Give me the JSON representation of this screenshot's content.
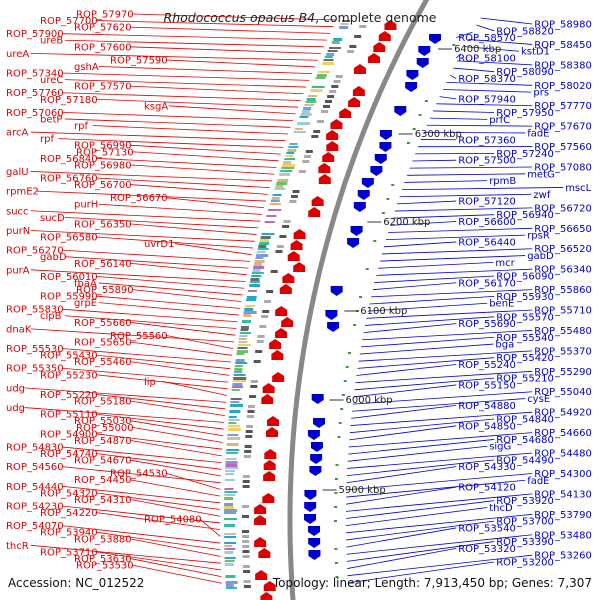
{
  "title": {
    "organism": "Rhodococcus opacus B4",
    "suffix": ", complete genome"
  },
  "footer": {
    "accession": "Accession: NC_012522",
    "summary": "Topology: linear; Length: 7,913,450 bp; Genes: 7,307"
  },
  "colors": {
    "forward": "#dd0000",
    "reverse": "#0000cc",
    "backbone": "#888888"
  },
  "ticks": [
    "6400 kbp",
    "6300 kbp",
    "6200 kbp",
    "6100 kbp",
    "6000 kbp",
    "5900 kbp"
  ],
  "left_labels": [
    "ROP_57970",
    "ROP_57700",
    "ROP_57620",
    "ROP_57900",
    "ureB",
    "ROP_57600",
    "ureA",
    "ROP_57590",
    "gshA",
    "ROP_57340",
    "ureC",
    "ROP_57570",
    "ROP_57760",
    "ROP_57180",
    "ksgA",
    "ROP_57060",
    "betP",
    "rpf",
    "arcA",
    "rpf",
    "ROP_56990",
    "ROP_57130",
    "ROP_56840",
    "ROP_56980",
    "galU",
    "ROP_56760",
    "ROP_56700",
    "rpmE2",
    "ROP_56670",
    "purH",
    "succ",
    "sucD",
    "ROP_56350",
    "purN",
    "ROP_56580",
    "uvrD1",
    "ROP_56270",
    "gabD",
    "ROP_56140",
    "purA",
    "ROP_56010",
    "fbaA",
    "ROP_55890",
    "ROP_55990",
    "grpE",
    "ROP_55830",
    "clpB",
    "ROP_55660",
    "dnaK",
    "ROP_55560",
    "ROP_55650",
    "ROP_55530",
    "ROP_55430",
    "ROP_55460",
    "ROP_55350",
    "ROP_55230",
    "lip",
    "udg",
    "ROP_55220",
    "ROP_55180",
    "udg",
    "ROP_55110",
    "ROP_55030",
    "ROP_55000",
    "ROP_54900",
    "ROP_54870",
    "ROP_54830",
    "ROP_54740",
    "ROP_54670",
    "ROP_54560",
    "ROP_54530",
    "ROP_54450",
    "ROP_54440",
    "ROP_54320",
    "ROP_54310",
    "ROP_54230",
    "ROP_54220",
    "ROP_54080",
    "ROP_54070",
    "ROP_53940",
    "ROP_53880",
    "thcR",
    "ROP_53710",
    "ROP_53630",
    "ROP_53530"
  ],
  "right_labels": [
    "ROP_58980",
    "ROP_58820",
    "ROP_58570",
    "ROP_58450",
    "kstD1",
    "ROP_58100",
    "ROP_58380",
    "ROP_58090",
    "ROP_58370",
    "ROP_58020",
    "prs",
    "ROP_57940",
    "ROP_57770",
    "ROP_57950",
    "prfC",
    "ROP_57670",
    "fadE",
    "ROP_57360",
    "ROP_57560",
    "ROP_57240",
    "ROP_57500",
    "ROP_57080",
    "metG",
    "rpmB",
    "mscL",
    "zwf",
    "ROP_57120",
    "ROP_56720",
    "ROP_56940",
    "ROP_56600",
    "ROP_56650",
    "rpsR",
    "ROP_56440",
    "ROP_56520",
    "gabD",
    "mcr",
    "ROP_56340",
    "ROP_56090",
    "ROP_56170",
    "ROP_55860",
    "ROP_55930",
    "benE",
    "ROP_55710",
    "ROP_55570",
    "ROP_55690",
    "ROP_55480",
    "ROP_55540",
    "bga",
    "ROP_55370",
    "ROP_55420",
    "ROP_55240",
    "ROP_55290",
    "ROP_55210",
    "ROP_55150",
    "ROP_55040",
    "cysE",
    "ROP_54880",
    "ROP_54920",
    "ROP_54840",
    "ROP_54850",
    "ROP_54660",
    "ROP_54680",
    "sigG",
    "ROP_54480",
    "ROP_54490",
    "ROP_54330",
    "ROP_54300",
    "fadE",
    "ROP_54120",
    "ROP_54130",
    "ROP_53920",
    "thcD",
    "ROP_53790",
    "ROP_53700",
    "ROP_53540",
    "ROP_53480",
    "ROP_53390",
    "ROP_53320",
    "ROP_53260",
    "ROP_53200"
  ]
}
